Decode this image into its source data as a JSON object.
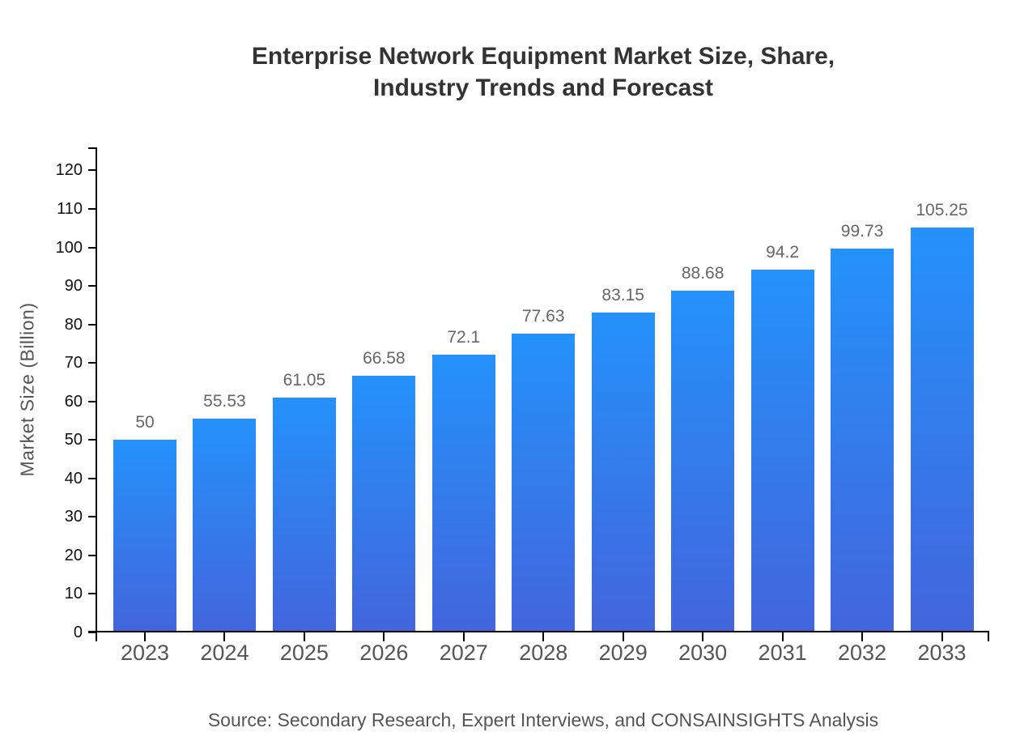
{
  "header": {
    "title_line1": "Enterprise Network Equipment Market Size, Share,",
    "title_line2": "Industry Trends and Forecast"
  },
  "footer": {
    "source": "Source: Secondary Research, Expert Interviews, and CONSAINSIGHTS Analysis"
  },
  "chart_data": {
    "type": "bar",
    "title": "Enterprise Network Equipment Market Size, Share, Industry Trends and Forecast",
    "categories": [
      "2023",
      "2024",
      "2025",
      "2026",
      "2027",
      "2028",
      "2029",
      "2030",
      "2031",
      "2032",
      "2033"
    ],
    "values": [
      50,
      55.53,
      61.05,
      66.58,
      72.1,
      77.63,
      83.15,
      88.68,
      94.2,
      99.73,
      105.25
    ],
    "value_labels": [
      "50",
      "55.53",
      "61.05",
      "66.58",
      "72.1",
      "77.63",
      "83.15",
      "88.68",
      "94.2",
      "99.73",
      "105.25"
    ],
    "xlabel": "",
    "ylabel": "Market Size (Billion)",
    "ylim": [
      0,
      120
    ],
    "y_tick_step": 10,
    "y_tick_labels": [
      "0",
      "10",
      "20",
      "30",
      "40",
      "50",
      "60",
      "70",
      "80",
      "90",
      "100",
      "110",
      "120"
    ],
    "grid": false,
    "legend_position": "none",
    "bar_gradient": {
      "top": "#2492fa",
      "bottom": "#4365dc"
    },
    "colors": {
      "background": "#ffffff",
      "axis": "#000000",
      "title": "#333333",
      "y_tick_label": "#111111",
      "category_label": "#555555",
      "value_label": "#666666",
      "axis_title": "#555555",
      "source": "#555555"
    }
  }
}
